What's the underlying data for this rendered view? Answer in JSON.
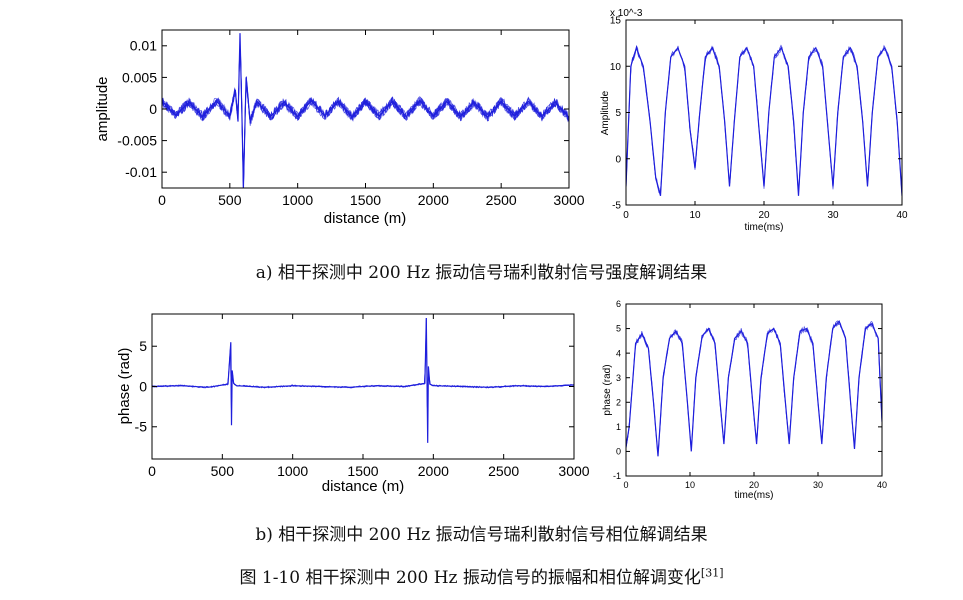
{
  "captions": {
    "a": "a)  相干探测中 200 Hz 振动信号瑞利散射信号强度解调结果",
    "b": "b)  相干探测中 200 Hz 振动信号瑞利散射信号相位解调结果",
    "figure": "图 1-10  相干探测中 200 Hz 振动信号的振幅和相位解调变化",
    "figure_ref": "[31]"
  },
  "colors": {
    "trace": "#1f1fdc",
    "axis": "#000000",
    "background": "#ffffff"
  },
  "chart_data": [
    {
      "id": "amplitude-vs-distance",
      "type": "line",
      "xlabel": "distance (m)",
      "ylabel": "amplitude",
      "xlim": [
        0,
        3000
      ],
      "ylim": [
        -0.0125,
        0.0125
      ],
      "xticks": [
        0,
        500,
        1000,
        1500,
        2000,
        2500,
        3000
      ],
      "xtick_labels": [
        "0",
        "500",
        "1000",
        "1500",
        "2000",
        "2500",
        "3000"
      ],
      "yticks": [
        0.01,
        0.005,
        0,
        -0.005,
        -0.01
      ],
      "ytick_labels": [
        "0.01",
        "0.005",
        "0",
        "-0.005",
        "-0.01"
      ],
      "series": [
        {
          "x": [
            0,
            100,
            200,
            300,
            400,
            500,
            540,
            560,
            575,
            590,
            600,
            620,
            650,
            700,
            800,
            900,
            1000,
            1100,
            1200,
            1300,
            1400,
            1500,
            1600,
            1700,
            1800,
            1900,
            2000,
            2100,
            2200,
            2300,
            2400,
            2500,
            2600,
            2700,
            2800,
            2900,
            3000
          ],
          "y": [
            0.0012,
            -0.001,
            0.0011,
            -0.0012,
            0.0013,
            -0.0011,
            0.003,
            -0.002,
            0.012,
            -0.0015,
            -0.0125,
            0.005,
            -0.002,
            0.0012,
            -0.0012,
            0.0011,
            -0.0012,
            0.0013,
            -0.0011,
            0.0012,
            -0.0013,
            0.0012,
            -0.0011,
            0.0012,
            -0.0012,
            0.0013,
            -0.0011,
            0.0012,
            -0.0012,
            0.0011,
            -0.0013,
            0.0012,
            -0.0011,
            0.0012,
            -0.0012,
            0.0011,
            -0.0014
          ]
        }
      ],
      "grid": false
    },
    {
      "id": "amplitude-vs-time",
      "type": "line",
      "xlabel": "time(ms)",
      "ylabel": "Amplitude",
      "scale_label": "x 10^-3",
      "xlim": [
        0,
        40
      ],
      "ylim": [
        -5,
        15
      ],
      "xticks": [
        0,
        10,
        20,
        30,
        40
      ],
      "xtick_labels": [
        "0",
        "10",
        "20",
        "30",
        "40"
      ],
      "yticks": [
        -5,
        0,
        5,
        10,
        15
      ],
      "ytick_labels": [
        "-5",
        "0",
        "5",
        "10",
        "15"
      ],
      "series": [
        {
          "x": [
            0,
            0.7,
            1.5,
            2.5,
            3.5,
            4.3,
            5.0,
            5.7,
            6.5,
            7.5,
            8.5,
            9.3,
            10.0,
            10.7,
            11.5,
            12.5,
            13.5,
            14.3,
            15.0,
            15.7,
            16.5,
            17.5,
            18.5,
            19.3,
            20.0,
            20.7,
            21.5,
            22.5,
            23.5,
            24.3,
            25.0,
            25.7,
            26.5,
            27.5,
            28.5,
            29.3,
            30.0,
            30.7,
            31.5,
            32.5,
            33.5,
            34.3,
            35.0,
            35.7,
            36.5,
            37.5,
            38.5,
            39.3,
            40.0
          ],
          "y": [
            -3,
            10,
            12,
            10,
            4,
            -2,
            -4,
            5,
            11,
            12,
            10,
            3,
            -1,
            5,
            11,
            12,
            10,
            4,
            -3,
            4,
            11,
            12,
            10,
            3,
            -3,
            5,
            11,
            12,
            10,
            4,
            -4,
            5,
            11,
            12,
            10,
            3,
            -3,
            5,
            11,
            12,
            10,
            4,
            -3,
            5,
            11,
            12,
            10,
            4,
            -4
          ]
        }
      ],
      "grid": false
    },
    {
      "id": "phase-vs-distance",
      "type": "line",
      "xlabel": "distance (m)",
      "ylabel": "phase (rad)",
      "xlim": [
        0,
        3000
      ],
      "ylim": [
        -9,
        9
      ],
      "xticks": [
        0,
        500,
        1000,
        1500,
        2000,
        2500,
        3000
      ],
      "xtick_labels": [
        "0",
        "500",
        "1000",
        "1500",
        "2000",
        "2500",
        "3000"
      ],
      "yticks": [
        5,
        0,
        -5
      ],
      "ytick_labels": [
        "5",
        "0",
        "-5"
      ],
      "series": [
        {
          "x": [
            0,
            200,
            400,
            540,
            560,
            565,
            570,
            580,
            600,
            800,
            1000,
            1200,
            1400,
            1600,
            1800,
            1940,
            1950,
            1960,
            1965,
            1975,
            2000,
            2200,
            2400,
            2600,
            2800,
            3000
          ],
          "y": [
            0,
            0.1,
            -0.1,
            0.3,
            5.5,
            -4.8,
            2.0,
            0.4,
            0.1,
            -0.1,
            0.1,
            0,
            -0.1,
            0.1,
            0,
            0.4,
            8.5,
            -7.0,
            2.5,
            0.3,
            0.1,
            0,
            -0.1,
            0.1,
            0,
            0.2
          ]
        }
      ],
      "grid": false
    },
    {
      "id": "phase-vs-time",
      "type": "line",
      "xlabel": "time(ms)",
      "ylabel": "phase (rad)",
      "xlim": [
        0,
        40
      ],
      "ylim": [
        -1,
        6
      ],
      "xticks": [
        0,
        10,
        20,
        30,
        40
      ],
      "xtick_labels": [
        "0",
        "10",
        "20",
        "30",
        "40"
      ],
      "yticks": [
        -1,
        0,
        1,
        2,
        3,
        4,
        5,
        6
      ],
      "ytick_labels": [
        "-1",
        "0",
        "1",
        "2",
        "3",
        "4",
        "5",
        "6"
      ],
      "series": [
        {
          "x": [
            0,
            0.5,
            1.5,
            2.5,
            3.5,
            4.3,
            5.0,
            5.8,
            6.8,
            7.8,
            8.8,
            9.6,
            10.2,
            10.9,
            11.9,
            12.9,
            13.9,
            14.7,
            15.3,
            16.0,
            17.0,
            18.0,
            19.0,
            19.8,
            20.4,
            21.1,
            22.1,
            23.1,
            24.1,
            24.9,
            25.5,
            26.2,
            27.2,
            28.2,
            29.2,
            30.0,
            30.6,
            31.3,
            32.3,
            33.3,
            34.3,
            35.1,
            35.7,
            36.4,
            37.4,
            38.4,
            39.4,
            40.0
          ],
          "y": [
            0.2,
            1,
            4.4,
            4.8,
            4.2,
            2,
            -0.2,
            3,
            4.6,
            4.9,
            4.4,
            2,
            0,
            3,
            4.7,
            5.0,
            4.4,
            2,
            0.3,
            3,
            4.6,
            4.9,
            4.4,
            2,
            0.3,
            3,
            4.8,
            5.0,
            4.4,
            2,
            0.3,
            3,
            4.9,
            5.0,
            4.4,
            2,
            0.3,
            3,
            5.0,
            5.3,
            4.6,
            2,
            0.1,
            3,
            5.0,
            5.2,
            4.6,
            1.2
          ]
        }
      ],
      "grid": false
    }
  ]
}
